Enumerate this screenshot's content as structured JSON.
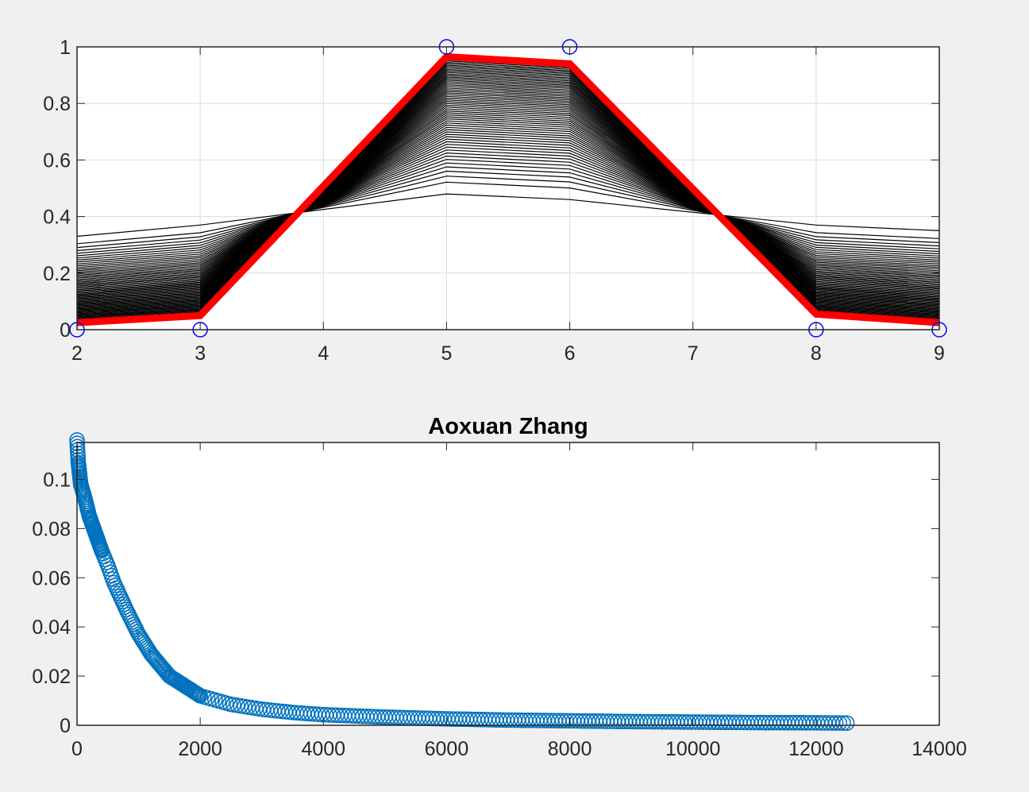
{
  "chart_data": [
    {
      "type": "line",
      "title": "",
      "xlabel": "",
      "ylabel": "",
      "xlim": [
        2,
        9
      ],
      "ylim": [
        0,
        1
      ],
      "grid": true,
      "xticks": [
        2,
        3,
        4,
        5,
        6,
        7,
        8,
        9
      ],
      "xtick_labels": [
        "2",
        "3",
        "4",
        "5",
        "6",
        "7",
        "8",
        "9"
      ],
      "yticks": [
        0,
        0.2,
        0.4,
        0.6,
        0.8,
        1
      ],
      "ytick_labels": [
        "0",
        "0.2",
        "0.4",
        "0.6",
        "0.8",
        "1"
      ],
      "x": [
        2,
        3,
        5,
        6,
        8,
        9
      ],
      "target_markers": {
        "marker": "circle",
        "color": "#0000ff",
        "x": [
          2,
          3,
          5,
          6,
          8,
          9
        ],
        "y": [
          0,
          0,
          1,
          1,
          0,
          0
        ]
      },
      "initial_curve": {
        "color": "#000000",
        "y": [
          0.33,
          0.37,
          0.48,
          0.46,
          0.37,
          0.35
        ]
      },
      "intermediate_curves": {
        "color": "#000000",
        "count": 60
      },
      "final_curve": {
        "color": "#ff0000",
        "y": [
          0.025,
          0.05,
          0.965,
          0.94,
          0.055,
          0.025
        ]
      }
    },
    {
      "type": "scatter",
      "title": "Aoxuan Zhang",
      "xlabel": "",
      "ylabel": "",
      "xlim": [
        0,
        14000
      ],
      "ylim": [
        0,
        0.115
      ],
      "grid": false,
      "xticks": [
        0,
        2000,
        4000,
        6000,
        8000,
        10000,
        12000,
        14000
      ],
      "xtick_labels": [
        "0",
        "2000",
        "4000",
        "6000",
        "8000",
        "10000",
        "12000",
        "14000"
      ],
      "yticks": [
        0,
        0.02,
        0.04,
        0.06,
        0.08,
        0.1
      ],
      "ytick_labels": [
        "0",
        "0.02",
        "0.04",
        "0.06",
        "0.08",
        "0.1"
      ],
      "marker": "circle",
      "color": "#0072bd",
      "x": [
        0,
        20,
        60,
        120,
        200,
        300,
        400,
        500,
        600,
        800,
        1000,
        1200,
        1500,
        2000,
        2500,
        3000,
        3500,
        4000,
        5000,
        6000,
        7000,
        8000,
        9000,
        10000,
        11000,
        12000,
        12500
      ],
      "y": [
        0.116,
        0.107,
        0.098,
        0.093,
        0.085,
        0.078,
        0.071,
        0.065,
        0.058,
        0.047,
        0.037,
        0.029,
        0.02,
        0.012,
        0.0085,
        0.0065,
        0.0052,
        0.0043,
        0.0033,
        0.0026,
        0.0021,
        0.0018,
        0.0015,
        0.0013,
        0.0011,
        0.001,
        0.0009
      ]
    }
  ]
}
